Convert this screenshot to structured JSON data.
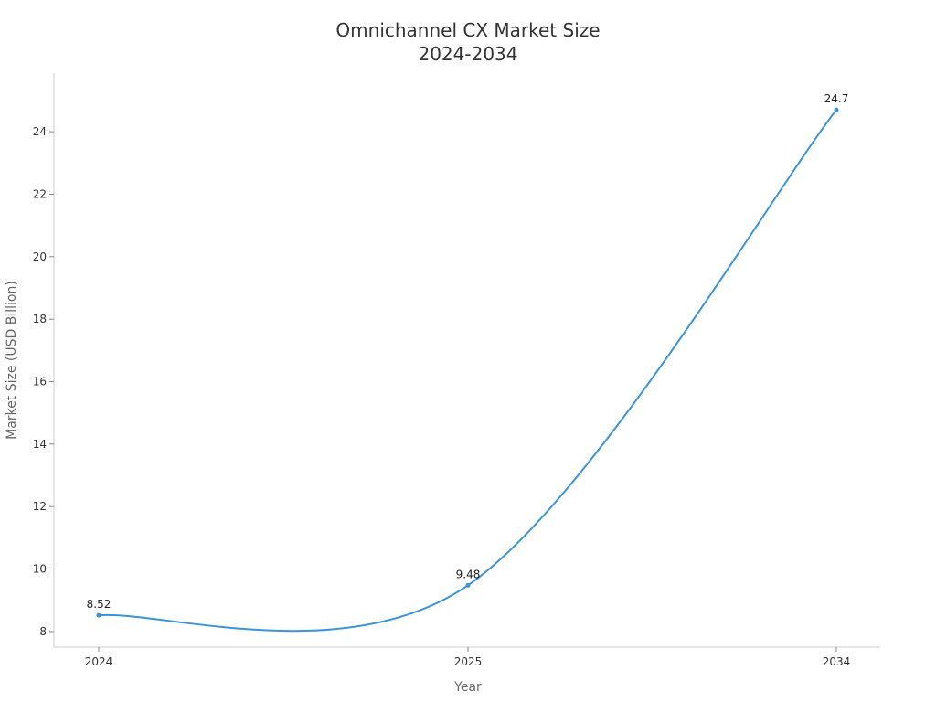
{
  "chart_data": {
    "type": "line",
    "title": "Omnichannel CX Market Size",
    "subtitle": "2024-2034",
    "xlabel": "Year",
    "ylabel": "Market Size (USD Billion)",
    "categories": [
      "2024",
      "2025",
      "2034"
    ],
    "series": [
      {
        "values": [
          8.52,
          9.48,
          24.7
        ],
        "labels": [
          "8.52",
          "9.48",
          "24.7"
        ],
        "color": "#3a93dd"
      }
    ],
    "ylim": [
      7.5,
      25.7
    ],
    "yticks": [
      8,
      10,
      12,
      14,
      16,
      18,
      20,
      22,
      24
    ],
    "grid": false,
    "legend": "none",
    "curve": "smooth"
  }
}
